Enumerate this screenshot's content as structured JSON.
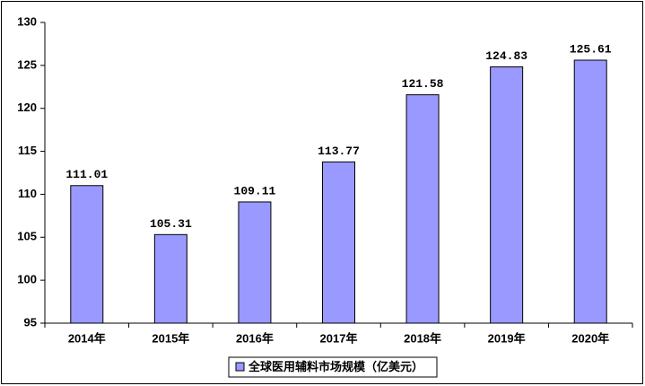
{
  "chart_data": {
    "type": "bar",
    "categories": [
      "2014年",
      "2015年",
      "2016年",
      "2017年",
      "2018年",
      "2019年",
      "2020年"
    ],
    "series": [
      {
        "name": "全球医用辅料市场规模（亿美元）",
        "color": "#9999ff",
        "values": [
          111.01,
          105.31,
          109.11,
          113.77,
          121.58,
          124.83,
          125.61
        ]
      }
    ],
    "ylim": [
      95,
      130
    ],
    "yticks": [
      95,
      100,
      105,
      110,
      115,
      120,
      125,
      130
    ],
    "legend": "bottom"
  }
}
